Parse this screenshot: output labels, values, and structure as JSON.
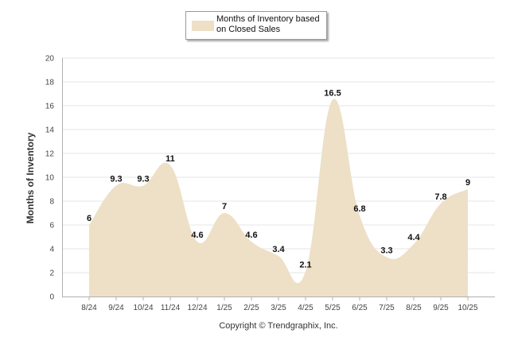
{
  "chart_data": {
    "type": "area",
    "title": "",
    "xlabel": "",
    "ylabel": "Months of Inventory",
    "ylim": [
      0,
      20
    ],
    "yticks": [
      "0",
      "2",
      "4",
      "6",
      "8",
      "10",
      "12",
      "14",
      "16",
      "18",
      "20"
    ],
    "categories": [
      "8/24",
      "9/24",
      "10/24",
      "11/24",
      "12/24",
      "1/25",
      "2/25",
      "3/25",
      "4/25",
      "5/25",
      "6/25",
      "7/25",
      "8/25",
      "9/25",
      "10/25"
    ],
    "series": [
      {
        "name": "Months of Inventory based on Closed Sales",
        "values": [
          6,
          9.3,
          9.3,
          11,
          4.6,
          7,
          4.6,
          3.4,
          2.1,
          16.5,
          6.8,
          3.3,
          4.4,
          7.8,
          9
        ],
        "labels": [
          "6",
          "9.3",
          "9.3",
          "11",
          "4.6",
          "7",
          "4.6",
          "3.4",
          "2.1",
          "16.5",
          "6.8",
          "3.3",
          "4.4",
          "7.8",
          "9"
        ]
      }
    ],
    "legend": {
      "position": "top-center",
      "line1": "Months of Inventory based",
      "line2": "on Closed Sales"
    },
    "grid": true
  },
  "colors": {
    "fill": "#ede0c6",
    "grid": "#e6e6e6",
    "axis": "#b0b0b0"
  },
  "footer": {
    "copyright": "Copyright © Trendgraphix, Inc."
  }
}
